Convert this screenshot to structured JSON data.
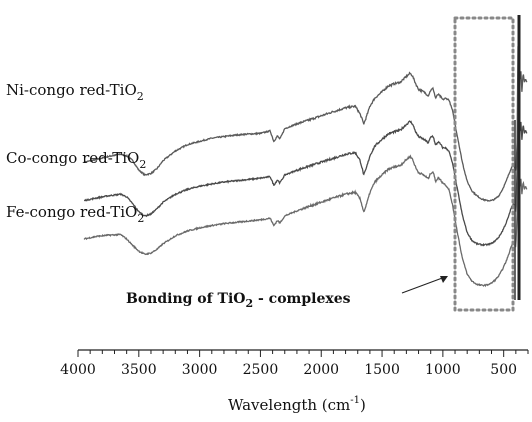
{
  "chart_data": {
    "type": "line",
    "title": "",
    "xlabel": "Wavelength (cm",
    "xlabel_sup": "-1",
    "xlabel_close": ")",
    "xlim": [
      4000,
      300
    ],
    "x_reversed": true,
    "xticks": [
      4000,
      3500,
      3000,
      2500,
      2000,
      1500,
      1000,
      500
    ],
    "ylabel": "",
    "grid": false,
    "series": [
      {
        "name": "Ni-congo red-TiO",
        "name_sub": "2",
        "color": "#5a5a5a",
        "x": [
          3950,
          3850,
          3750,
          3650,
          3600,
          3550,
          3500,
          3450,
          3400,
          3350,
          3300,
          3200,
          3100,
          3000,
          2900,
          2800,
          2700,
          2600,
          2500,
          2420,
          2390,
          2360,
          2340,
          2300,
          2200,
          2100,
          2000,
          1900,
          1800,
          1720,
          1680,
          1650,
          1630,
          1600,
          1560,
          1500,
          1450,
          1400,
          1350,
          1300,
          1270,
          1250,
          1220,
          1200,
          1150,
          1120,
          1100,
          1080,
          1060,
          1040,
          1020,
          1000,
          980,
          950,
          920,
          880,
          840,
          800,
          760,
          720,
          680,
          640,
          600,
          570,
          540,
          510,
          480,
          460,
          440,
          420,
          400,
          390,
          380,
          375,
          370,
          365,
          360,
          350,
          340,
          330,
          320,
          310
        ],
        "y": [
          0.54,
          0.548,
          0.558,
          0.565,
          0.56,
          0.545,
          0.515,
          0.5,
          0.505,
          0.52,
          0.545,
          0.575,
          0.595,
          0.605,
          0.615,
          0.62,
          0.625,
          0.628,
          0.63,
          0.638,
          0.605,
          0.622,
          0.612,
          0.645,
          0.66,
          0.672,
          0.685,
          0.698,
          0.71,
          0.715,
          0.69,
          0.66,
          0.68,
          0.715,
          0.74,
          0.76,
          0.778,
          0.785,
          0.79,
          0.808,
          0.818,
          0.81,
          0.782,
          0.768,
          0.758,
          0.748,
          0.765,
          0.77,
          0.74,
          0.752,
          0.745,
          0.735,
          0.74,
          0.735,
          0.7,
          0.62,
          0.54,
          0.48,
          0.45,
          0.435,
          0.425,
          0.42,
          0.42,
          0.425,
          0.435,
          0.455,
          0.48,
          0.5,
          0.52,
          0.535,
          0.51,
          0.6,
          0.98,
          0.72,
          0.88,
          0.78,
          0.84,
          0.76,
          0.82,
          0.79,
          0.8,
          0.79
        ]
      },
      {
        "name": "Co-congo red-TiO",
        "name_sub": "2",
        "color": "#4a4a4a",
        "x": [
          3950,
          3850,
          3750,
          3650,
          3600,
          3550,
          3500,
          3450,
          3400,
          3350,
          3300,
          3200,
          3100,
          3000,
          2900,
          2800,
          2700,
          2600,
          2500,
          2420,
          2390,
          2360,
          2340,
          2300,
          2200,
          2100,
          2000,
          1900,
          1800,
          1720,
          1680,
          1650,
          1630,
          1600,
          1560,
          1500,
          1450,
          1400,
          1350,
          1300,
          1270,
          1250,
          1220,
          1200,
          1150,
          1120,
          1100,
          1080,
          1060,
          1040,
          1020,
          1000,
          980,
          950,
          920,
          880,
          840,
          800,
          760,
          720,
          680,
          640,
          600,
          570,
          540,
          510,
          480,
          460,
          440,
          420,
          400,
          390,
          380,
          375,
          370,
          365,
          360,
          350,
          340,
          330,
          320,
          310
        ],
        "y": [
          0.42,
          0.428,
          0.435,
          0.44,
          0.432,
          0.41,
          0.385,
          0.372,
          0.378,
          0.395,
          0.415,
          0.44,
          0.455,
          0.465,
          0.472,
          0.478,
          0.482,
          0.486,
          0.49,
          0.495,
          0.468,
          0.485,
          0.475,
          0.5,
          0.515,
          0.528,
          0.54,
          0.552,
          0.565,
          0.57,
          0.545,
          0.5,
          0.52,
          0.56,
          0.59,
          0.612,
          0.628,
          0.635,
          0.64,
          0.658,
          0.668,
          0.66,
          0.632,
          0.62,
          0.61,
          0.6,
          0.618,
          0.622,
          0.592,
          0.604,
          0.596,
          0.585,
          0.585,
          0.575,
          0.535,
          0.455,
          0.375,
          0.32,
          0.295,
          0.285,
          0.282,
          0.282,
          0.286,
          0.294,
          0.306,
          0.325,
          0.35,
          0.37,
          0.395,
          0.41,
          0.39,
          0.52,
          0.76,
          0.6,
          0.7,
          0.62,
          0.68,
          0.61,
          0.66,
          0.63,
          0.64,
          0.63
        ]
      },
      {
        "name": "Fe-congo red-TiO",
        "name_sub": "2",
        "color": "#6a6a6a",
        "x": [
          3950,
          3850,
          3750,
          3650,
          3600,
          3550,
          3500,
          3450,
          3400,
          3350,
          3300,
          3200,
          3100,
          3000,
          2900,
          2800,
          2700,
          2600,
          2500,
          2420,
          2390,
          2360,
          2340,
          2300,
          2200,
          2100,
          2000,
          1900,
          1800,
          1720,
          1680,
          1650,
          1630,
          1600,
          1560,
          1500,
          1450,
          1400,
          1350,
          1300,
          1270,
          1250,
          1220,
          1200,
          1150,
          1120,
          1100,
          1080,
          1060,
          1040,
          1020,
          1000,
          980,
          950,
          920,
          880,
          840,
          800,
          760,
          720,
          680,
          640,
          600,
          570,
          540,
          510,
          480,
          460,
          440,
          420,
          400,
          390,
          380,
          375,
          370,
          365,
          360,
          350,
          340,
          330,
          320,
          310
        ],
        "y": [
          0.3,
          0.308,
          0.312,
          0.314,
          0.3,
          0.28,
          0.262,
          0.252,
          0.256,
          0.268,
          0.285,
          0.31,
          0.325,
          0.335,
          0.342,
          0.348,
          0.352,
          0.356,
          0.36,
          0.365,
          0.342,
          0.358,
          0.35,
          0.372,
          0.388,
          0.402,
          0.415,
          0.428,
          0.44,
          0.446,
          0.425,
          0.385,
          0.405,
          0.445,
          0.478,
          0.5,
          0.518,
          0.525,
          0.53,
          0.548,
          0.558,
          0.55,
          0.52,
          0.508,
          0.498,
          0.488,
          0.506,
          0.51,
          0.48,
          0.492,
          0.485,
          0.475,
          0.47,
          0.455,
          0.405,
          0.32,
          0.24,
          0.19,
          0.168,
          0.158,
          0.155,
          0.156,
          0.162,
          0.172,
          0.185,
          0.205,
          0.23,
          0.25,
          0.275,
          0.292,
          0.275,
          0.38,
          0.56,
          0.43,
          0.52,
          0.45,
          0.5,
          0.44,
          0.48,
          0.455,
          0.465,
          0.455
        ]
      }
    ],
    "annotation": {
      "text": "Bonding of TiO",
      "sub": "2",
      "text_after": " - complexes"
    },
    "highlight_box": {
      "x_from": 900,
      "x_to": 330,
      "style": "dotted"
    }
  }
}
